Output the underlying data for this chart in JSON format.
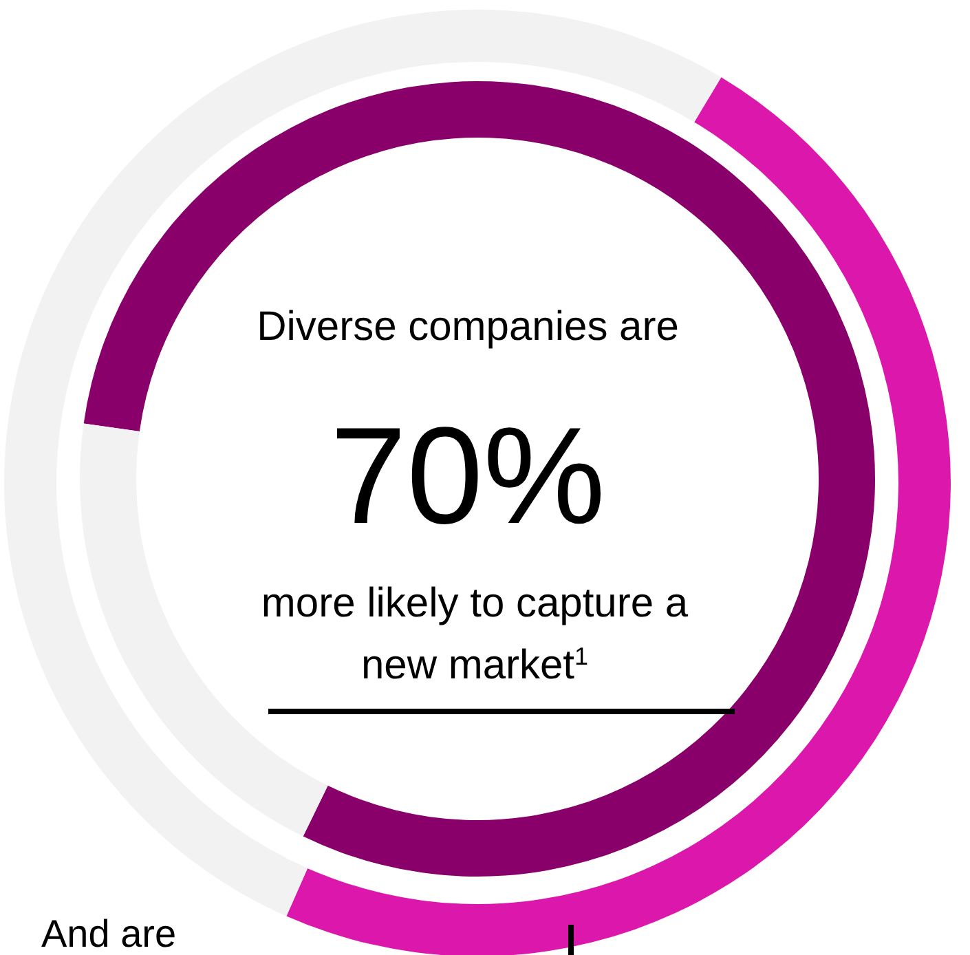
{
  "chart_data": [
    {
      "type": "donut",
      "categories": [
        null,
        null
      ],
      "values": [
        48,
        52
      ],
      "colors": [
        "#dc18ac",
        "#f2f2f2"
      ]
    },
    {
      "type": "donut",
      "categories": [
        null,
        null
      ],
      "values": [
        80,
        20
      ],
      "colors": [
        "#8a006b",
        "#f2f2f2"
      ],
      "annotations": [
        "Diverse companies are",
        "70%",
        "more likely to capture a new market$^{1}$",
        "And are"
      ]
    }
  ]
}
